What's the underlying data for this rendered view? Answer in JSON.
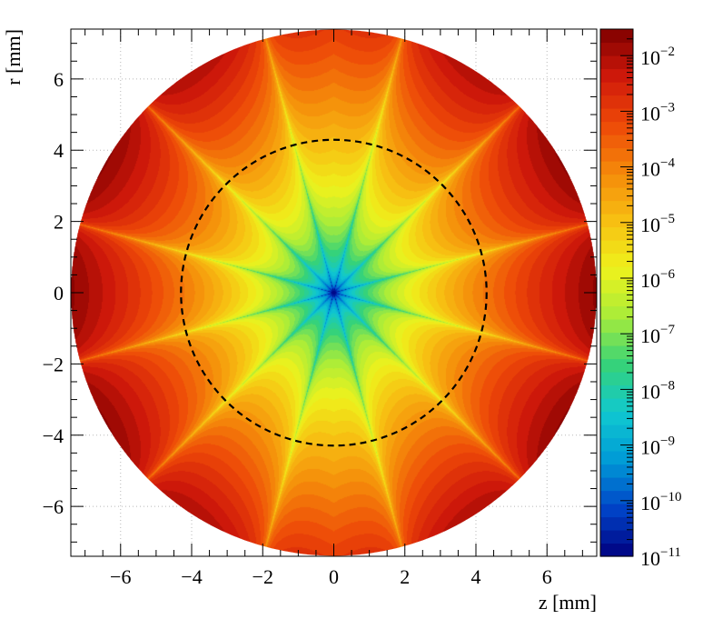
{
  "chart_data": {
    "type": "heatmap",
    "title": "",
    "xlabel": "z [mm]",
    "ylabel": "r [mm]",
    "xlim": [
      -7.4,
      7.4
    ],
    "ylim": [
      -7.4,
      7.4
    ],
    "xticks": [
      -6,
      -4,
      -2,
      0,
      2,
      4,
      6
    ],
    "yticks": [
      -6,
      -4,
      -2,
      0,
      2,
      4,
      6
    ],
    "xtick_labels": [
      "−6",
      "−4",
      "−2",
      "0",
      "2",
      "4",
      "6"
    ],
    "ytick_labels": [
      "−6",
      "−4",
      "−2",
      "0",
      "2",
      "4",
      "6"
    ],
    "grid": true,
    "scale": "log",
    "zlim": [
      1e-11,
      0.03
    ],
    "colorbar": {
      "ticks": [
        -11,
        -10,
        -9,
        -8,
        -7,
        -6,
        -5,
        -4,
        -3,
        -2
      ],
      "labels": [
        {
          "base": "10",
          "exp": "−11"
        },
        {
          "base": "10",
          "exp": "−10"
        },
        {
          "base": "10",
          "exp": "−9"
        },
        {
          "base": "10",
          "exp": "−8"
        },
        {
          "base": "10",
          "exp": "−7"
        },
        {
          "base": "10",
          "exp": "−6"
        },
        {
          "base": "10",
          "exp": "−5"
        },
        {
          "base": "10",
          "exp": "−4"
        },
        {
          "base": "10",
          "exp": "−3"
        },
        {
          "base": "10",
          "exp": "−2"
        }
      ]
    },
    "field": {
      "domain_radius_mm": 7.4,
      "nodal_lines": 12,
      "center_value": 1e-11,
      "max_value": 0.02
    },
    "annotations": [
      {
        "type": "dashed-circle",
        "radius_mm": 4.3,
        "color": "#000000"
      }
    ],
    "colors": [
      "#00007f",
      "#0044c8",
      "#009ad6",
      "#10c8d0",
      "#35d27a",
      "#a8ec3a",
      "#eef21c",
      "#f7c012",
      "#f58a0a",
      "#ee4a08",
      "#d0190a",
      "#7f0000"
    ]
  }
}
